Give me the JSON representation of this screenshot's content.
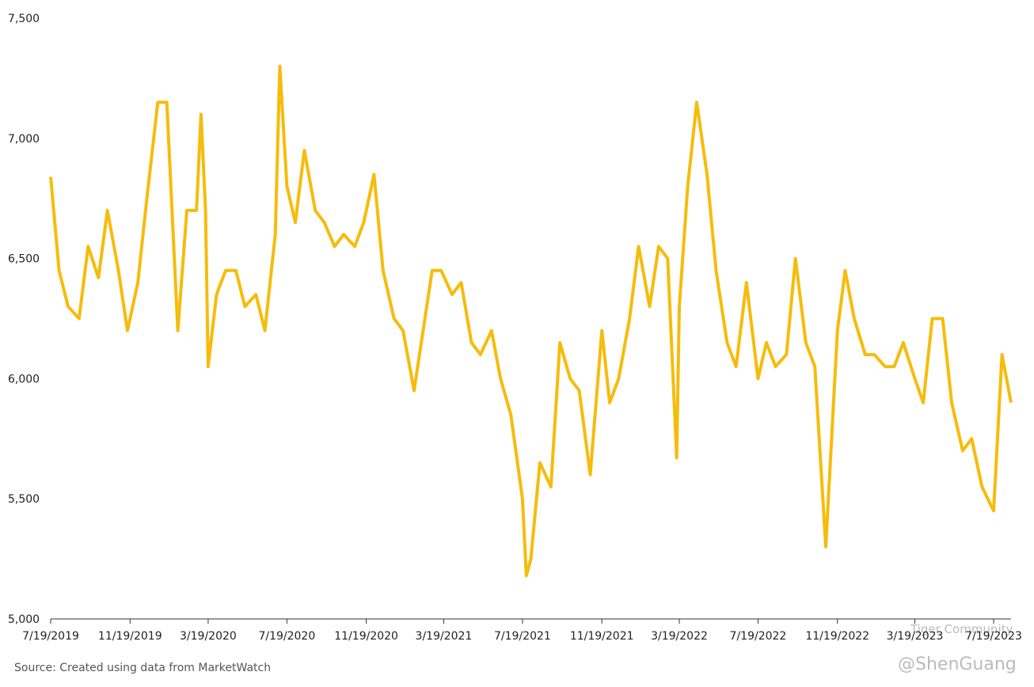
{
  "chart_data": {
    "type": "line",
    "source": "Source: Created using data from MarketWatch",
    "watermark": [
      "Tiger Community",
      "@ShenGuang"
    ],
    "x": [
      "7/19/2019",
      "8/1/2019",
      "8/15/2019",
      "9/1/2019",
      "9/15/2019",
      "10/1/2019",
      "10/15/2019",
      "11/1/2019",
      "11/15/2019",
      "12/1/2019",
      "12/15/2019",
      "1/1/2020",
      "1/15/2020",
      "2/1/2020",
      "2/15/2020",
      "3/1/2020",
      "3/8/2020",
      "3/15/2020",
      "3/19/2020",
      "4/1/2020",
      "4/15/2020",
      "5/1/2020",
      "5/15/2020",
      "6/1/2020",
      "6/15/2020",
      "7/1/2020",
      "7/8/2020",
      "7/19/2020",
      "8/1/2020",
      "8/15/2020",
      "9/1/2020",
      "9/15/2020",
      "10/1/2020",
      "10/15/2020",
      "11/1/2020",
      "11/15/2020",
      "12/1/2020",
      "12/15/2020",
      "1/1/2021",
      "1/15/2021",
      "2/1/2021",
      "2/15/2021",
      "3/1/2021",
      "3/15/2021",
      "4/1/2021",
      "4/15/2021",
      "5/1/2021",
      "5/15/2021",
      "6/1/2021",
      "6/15/2021",
      "7/1/2021",
      "7/19/2021",
      "7/25/2021",
      "8/1/2021",
      "8/15/2021",
      "9/1/2021",
      "9/15/2021",
      "10/1/2021",
      "10/15/2021",
      "11/1/2021",
      "11/19/2021",
      "12/1/2021",
      "12/15/2021",
      "1/1/2022",
      "1/15/2022",
      "2/1/2022",
      "2/15/2022",
      "3/1/2022",
      "3/15/2022",
      "3/19/2022",
      "4/1/2022",
      "4/15/2022",
      "5/1/2022",
      "5/15/2022",
      "6/1/2022",
      "6/15/2022",
      "7/1/2022",
      "7/19/2022",
      "8/1/2022",
      "8/15/2022",
      "9/1/2022",
      "9/15/2022",
      "10/1/2022",
      "10/15/2022",
      "11/1/2022",
      "11/19/2022",
      "12/1/2022",
      "12/15/2022",
      "1/1/2023",
      "1/15/2023",
      "2/1/2023",
      "2/15/2023",
      "3/1/2023",
      "3/19/2023",
      "4/1/2023",
      "4/15/2023",
      "5/1/2023",
      "5/15/2023",
      "6/1/2023",
      "6/15/2023",
      "7/1/2023",
      "7/19/2023",
      "8/1/2023",
      "8/15/2023"
    ],
    "series": [
      {
        "color": "#f6bc0c",
        "values": [
          6840,
          6450,
          6300,
          6250,
          6550,
          6420,
          6700,
          6450,
          6200,
          6400,
          6750,
          7150,
          7150,
          6200,
          6700,
          6700,
          7100,
          6700,
          6050,
          6350,
          6450,
          6450,
          6300,
          6350,
          6200,
          6600,
          7300,
          6800,
          6650,
          6950,
          6700,
          6650,
          6550,
          6600,
          6550,
          6650,
          6850,
          6450,
          6250,
          6200,
          5950,
          6200,
          6450,
          6450,
          6350,
          6400,
          6150,
          6100,
          6200,
          6000,
          5850,
          5500,
          5180,
          5250,
          5650,
          5550,
          6150,
          6000,
          5950,
          5600,
          6200,
          5900,
          6000,
          6250,
          6550,
          6300,
          6550,
          6500,
          5670,
          6300,
          6800,
          7150,
          6850,
          6450,
          6150,
          6050,
          6400,
          6000,
          6150,
          6050,
          6100,
          6500,
          6150,
          6050,
          5300,
          6200,
          6450,
          6250,
          6100,
          6100,
          6050,
          6050,
          6150,
          6000,
          5900,
          6250,
          6250,
          5900,
          5700,
          5750,
          5550,
          5450,
          6100,
          5900
        ]
      }
    ],
    "xlim": [
      "7/19/2019",
      "8/15/2023"
    ],
    "xticks": [
      "7/19/2019",
      "11/19/2019",
      "3/19/2020",
      "7/19/2020",
      "11/19/2020",
      "3/19/2021",
      "7/19/2021",
      "11/19/2021",
      "3/19/2022",
      "7/19/2022",
      "11/19/2022",
      "3/19/2023",
      "7/19/2023"
    ],
    "ylim": [
      5000,
      7500
    ],
    "yticks": [
      {
        "value": 5000,
        "label": "5,000"
      },
      {
        "value": 5500,
        "label": "5,500"
      },
      {
        "value": 6000,
        "label": "6,000"
      },
      {
        "value": 6500,
        "label": "6,500"
      },
      {
        "value": 7000,
        "label": "7,000"
      },
      {
        "value": 7500,
        "label": "7,500"
      }
    ]
  }
}
